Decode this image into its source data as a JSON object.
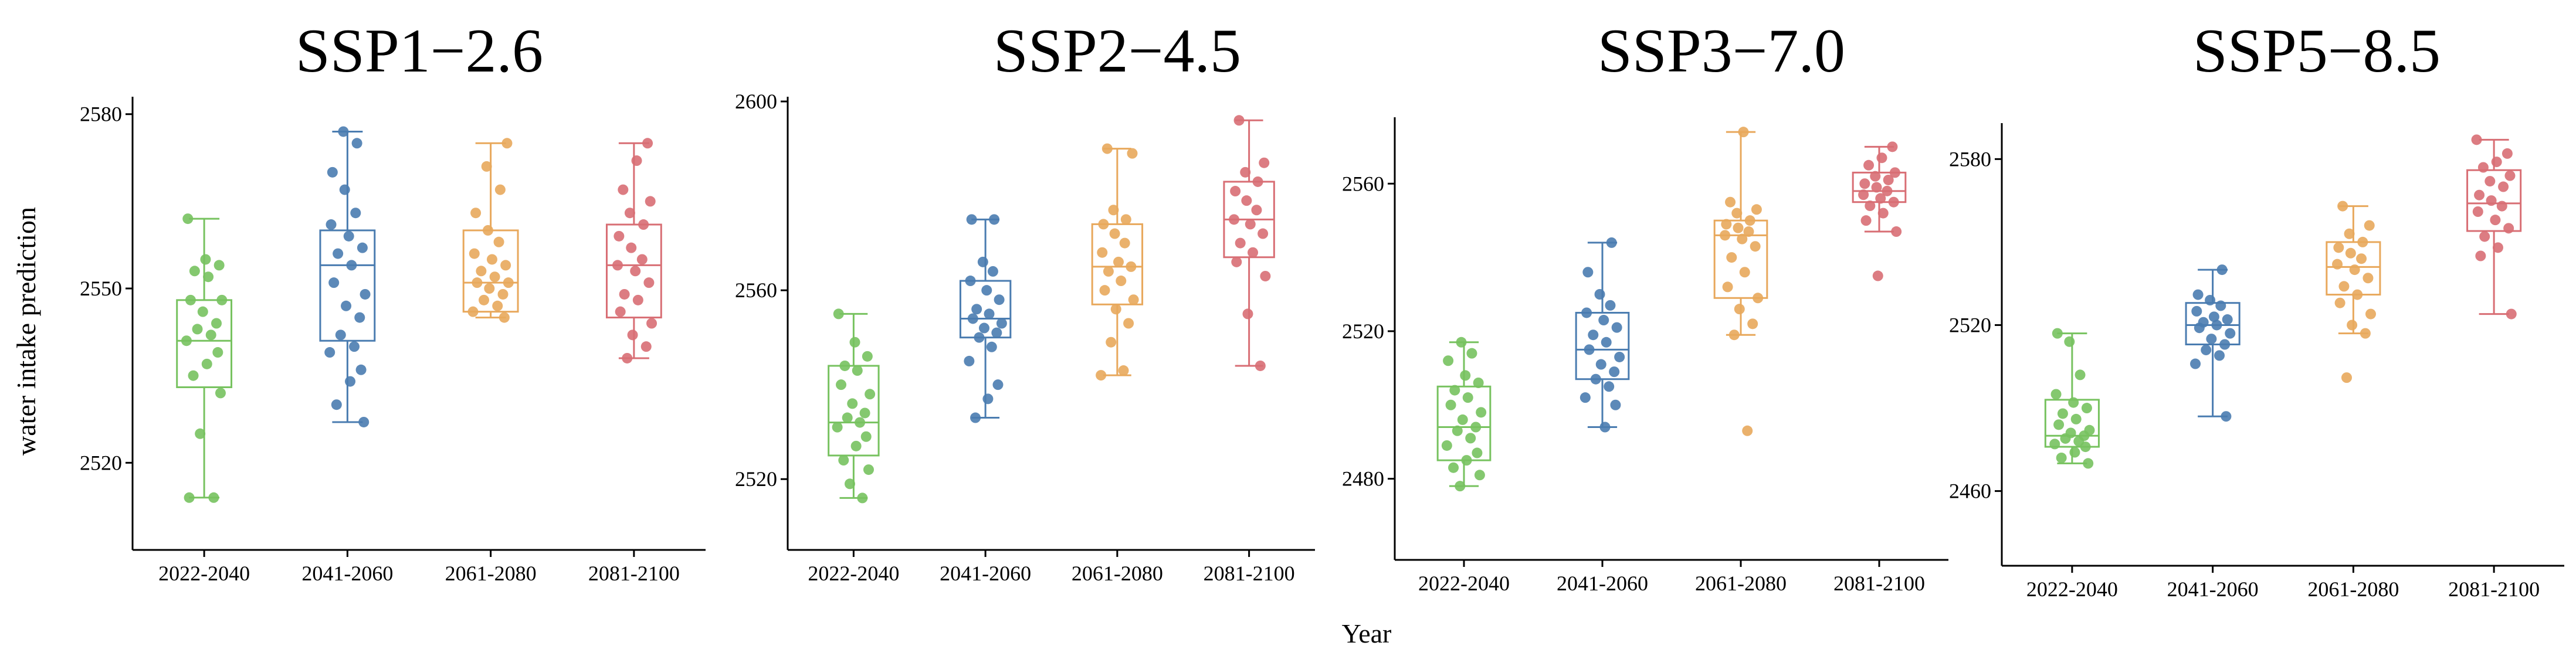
{
  "figure": {
    "ylabel": "water intake prediction",
    "xlabel": "Year"
  },
  "chart_data": [
    {
      "type": "box",
      "title": "SSP1−2.6",
      "xlabel": "Year",
      "ylabel": "water intake prediction",
      "categories": [
        "2022-2040",
        "2041-2060",
        "2061-2080",
        "2081-2100"
      ],
      "colors": [
        "#77c25f",
        "#4a7cb0",
        "#e8a85c",
        "#d86e74"
      ],
      "ylim": [
        2505,
        2583
      ],
      "yticks": [
        2520,
        2550,
        2580
      ],
      "boxes": [
        {
          "min": 2514,
          "q1": 2533,
          "median": 2541,
          "q3": 2548,
          "max": 2562
        },
        {
          "min": 2527,
          "q1": 2541,
          "median": 2554,
          "q3": 2560,
          "max": 2577
        },
        {
          "min": 2545,
          "q1": 2546,
          "median": 2551,
          "q3": 2560,
          "max": 2575
        },
        {
          "min": 2538,
          "q1": 2545,
          "median": 2554,
          "q3": 2561,
          "max": 2575
        }
      ],
      "points": [
        [
          2514,
          2514,
          2525,
          2532,
          2535,
          2537,
          2539,
          2541,
          2542,
          2543,
          2544,
          2546,
          2548,
          2548,
          2552,
          2553,
          2554,
          2555,
          2562
        ],
        [
          2527,
          2530,
          2534,
          2536,
          2539,
          2540,
          2542,
          2545,
          2547,
          2549,
          2551,
          2554,
          2556,
          2557,
          2559,
          2561,
          2563,
          2567,
          2570,
          2575,
          2577
        ],
        [
          2545,
          2546,
          2547,
          2548,
          2549,
          2550,
          2551,
          2551,
          2552,
          2553,
          2554,
          2555,
          2556,
          2558,
          2560,
          2563,
          2567,
          2571,
          2575
        ],
        [
          2538,
          2540,
          2542,
          2544,
          2546,
          2548,
          2549,
          2551,
          2553,
          2554,
          2555,
          2557,
          2559,
          2561,
          2563,
          2565,
          2567,
          2572,
          2575
        ]
      ]
    },
    {
      "type": "box",
      "title": "SSP2−4.5",
      "xlabel": "Year",
      "ylabel": "water intake prediction",
      "categories": [
        "2022-2040",
        "2041-2060",
        "2061-2080",
        "2081-2100"
      ],
      "colors": [
        "#77c25f",
        "#4a7cb0",
        "#e8a85c",
        "#d86e74"
      ],
      "ylim": [
        2505,
        2601
      ],
      "yticks": [
        2520,
        2560,
        2600
      ],
      "boxes": [
        {
          "min": 2516,
          "q1": 2525,
          "median": 2532,
          "q3": 2544,
          "max": 2555
        },
        {
          "min": 2533,
          "q1": 2550,
          "median": 2554,
          "q3": 2562,
          "max": 2575
        },
        {
          "min": 2542,
          "q1": 2557,
          "median": 2565,
          "q3": 2574,
          "max": 2590
        },
        {
          "min": 2544,
          "q1": 2567,
          "median": 2575,
          "q3": 2583,
          "max": 2596
        }
      ],
      "points": [
        [
          2516,
          2519,
          2522,
          2524,
          2527,
          2529,
          2531,
          2532,
          2533,
          2534,
          2536,
          2538,
          2540,
          2543,
          2544,
          2546,
          2549,
          2555
        ],
        [
          2533,
          2537,
          2540,
          2545,
          2548,
          2550,
          2551,
          2552,
          2553,
          2554,
          2555,
          2556,
          2558,
          2560,
          2562,
          2564,
          2566,
          2575,
          2575
        ],
        [
          2542,
          2543,
          2549,
          2553,
          2556,
          2558,
          2560,
          2562,
          2564,
          2565,
          2566,
          2568,
          2570,
          2572,
          2574,
          2575,
          2577,
          2589,
          2590
        ],
        [
          2544,
          2555,
          2563,
          2566,
          2568,
          2570,
          2572,
          2574,
          2575,
          2577,
          2579,
          2581,
          2583,
          2585,
          2587,
          2596
        ]
      ]
    },
    {
      "type": "box",
      "title": "SSP3−7.0",
      "xlabel": "Year",
      "ylabel": "water intake prediction",
      "categories": [
        "2022-2040",
        "2041-2060",
        "2061-2080",
        "2081-2100"
      ],
      "colors": [
        "#77c25f",
        "#4a7cb0",
        "#e8a85c",
        "#d86e74"
      ],
      "ylim": [
        2458,
        2578
      ],
      "yticks": [
        2480,
        2520,
        2560
      ],
      "boxes": [
        {
          "min": 2478,
          "q1": 2485,
          "median": 2494,
          "q3": 2505,
          "max": 2517
        },
        {
          "min": 2494,
          "q1": 2507,
          "median": 2515,
          "q3": 2525,
          "max": 2544
        },
        {
          "min": 2519,
          "q1": 2529,
          "median": 2546,
          "q3": 2550,
          "max": 2574
        },
        {
          "min": 2547,
          "q1": 2555,
          "median": 2558,
          "q3": 2563,
          "max": 2570
        }
      ],
      "points": [
        [
          2478,
          2481,
          2483,
          2485,
          2487,
          2489,
          2491,
          2493,
          2494,
          2496,
          2498,
          2500,
          2502,
          2504,
          2506,
          2508,
          2512,
          2514,
          2517
        ],
        [
          2494,
          2500,
          2502,
          2505,
          2507,
          2509,
          2511,
          2513,
          2515,
          2517,
          2519,
          2521,
          2523,
          2525,
          2527,
          2530,
          2536,
          2544
        ],
        [
          2493,
          2519,
          2522,
          2526,
          2529,
          2532,
          2536,
          2540,
          2543,
          2545,
          2546,
          2547,
          2548,
          2549,
          2550,
          2552,
          2553,
          2555,
          2574
        ],
        [
          2535,
          2547,
          2550,
          2552,
          2554,
          2555,
          2556,
          2557,
          2558,
          2559,
          2560,
          2561,
          2562,
          2563,
          2565,
          2567,
          2570
        ]
      ]
    },
    {
      "type": "box",
      "title": "SSP5−8.5",
      "xlabel": "Year",
      "ylabel": "water intake prediction",
      "categories": [
        "2022-2040",
        "2041-2060",
        "2061-2080",
        "2081-2100"
      ],
      "colors": [
        "#77c25f",
        "#4a7cb0",
        "#e8a85c",
        "#d86e74"
      ],
      "ylim": [
        2433,
        2593
      ],
      "yticks": [
        2460,
        2520,
        2580
      ],
      "boxes": [
        {
          "min": 2470,
          "q1": 2476,
          "median": 2480,
          "q3": 2493,
          "max": 2517
        },
        {
          "min": 2487,
          "q1": 2513,
          "median": 2520,
          "q3": 2528,
          "max": 2540
        },
        {
          "min": 2517,
          "q1": 2531,
          "median": 2541,
          "q3": 2550,
          "max": 2563
        },
        {
          "min": 2524,
          "q1": 2554,
          "median": 2564,
          "q3": 2576,
          "max": 2587
        }
      ],
      "points": [
        [
          2470,
          2472,
          2474,
          2476,
          2477,
          2478,
          2479,
          2480,
          2481,
          2482,
          2484,
          2486,
          2488,
          2490,
          2492,
          2495,
          2502,
          2514,
          2517
        ],
        [
          2487,
          2506,
          2509,
          2511,
          2513,
          2515,
          2517,
          2519,
          2520,
          2521,
          2522,
          2523,
          2525,
          2527,
          2529,
          2531,
          2540
        ],
        [
          2501,
          2517,
          2520,
          2524,
          2528,
          2531,
          2534,
          2537,
          2540,
          2542,
          2544,
          2546,
          2548,
          2550,
          2553,
          2556,
          2563
        ],
        [
          2524,
          2545,
          2548,
          2552,
          2555,
          2558,
          2561,
          2563,
          2565,
          2567,
          2570,
          2572,
          2574,
          2577,
          2579,
          2582,
          2587
        ]
      ]
    }
  ]
}
